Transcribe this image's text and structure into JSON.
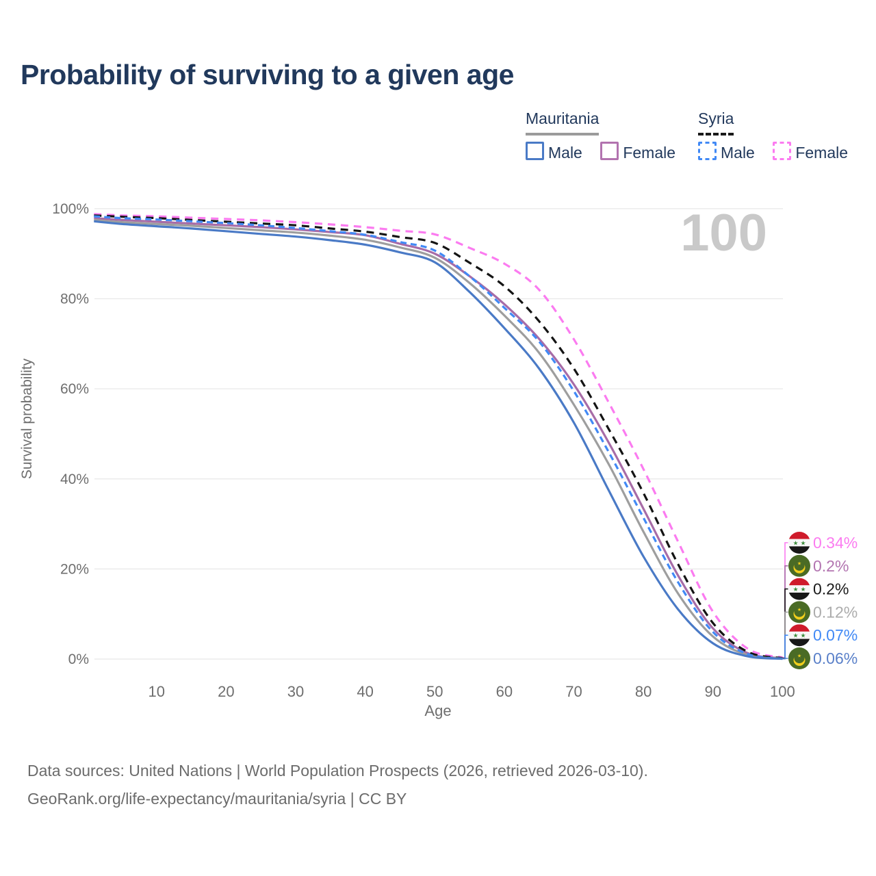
{
  "title": "Probability of surviving to a given age",
  "watermark": "100",
  "legend": {
    "groups": [
      {
        "name": "Mauritania",
        "underline_color": "#9b9b9b",
        "underline_style": "solid",
        "items": [
          {
            "label": "Male",
            "color": "#4a7ac6",
            "dashed": false
          },
          {
            "label": "Female",
            "color": "#b273af",
            "dashed": false
          }
        ]
      },
      {
        "name": "Syria",
        "underline_color": "#1a1a1a",
        "underline_style": "dashed",
        "items": [
          {
            "label": "Male",
            "color": "#4189f5",
            "dashed": true
          },
          {
            "label": "Female",
            "color": "#fb7bf0",
            "dashed": true
          }
        ]
      }
    ]
  },
  "chart_data": {
    "type": "line",
    "title": "Probability of surviving to a given age",
    "xlabel": "Age",
    "ylabel": "Survival probability",
    "xlim": [
      1,
      100
    ],
    "ylim": [
      0,
      100
    ],
    "grid": "horizontal",
    "x_ticks": [
      10,
      20,
      30,
      40,
      50,
      60,
      70,
      80,
      90,
      100
    ],
    "y_ticks": [
      0,
      20,
      40,
      60,
      80,
      100
    ],
    "y_tick_labels": [
      "0%",
      "20%",
      "40%",
      "60%",
      "80%",
      "100%"
    ],
    "ages": [
      1,
      5,
      10,
      15,
      20,
      25,
      30,
      35,
      40,
      45,
      50,
      55,
      60,
      65,
      70,
      75,
      80,
      85,
      90,
      95,
      100
    ],
    "series": [
      {
        "id": "syria-female",
        "name": "Syria Female",
        "country": "syria",
        "sex": "female",
        "color": "#fb7bf0",
        "dash": "11 8",
        "end_label": "0.34%",
        "end_label_color": "#fb7bf0",
        "flag": "syria",
        "values": [
          98.8,
          98.5,
          98.3,
          98.0,
          97.7,
          97.4,
          97.0,
          96.5,
          95.9,
          95.1,
          94.3,
          91.3,
          87.8,
          82.0,
          71.0,
          57.0,
          42.2,
          26.0,
          10.5,
          2.3,
          0.34
        ]
      },
      {
        "id": "mauritania-female",
        "name": "Mauritania Female",
        "country": "mauritania",
        "sex": "female",
        "color": "#a76ca7",
        "dash": "",
        "end_label": "0.2%",
        "end_label_color": "#b274b0",
        "flag": "mauritania",
        "values": [
          97.9,
          97.5,
          97.1,
          96.7,
          96.3,
          95.9,
          95.4,
          94.8,
          94.1,
          92.2,
          90.0,
          85.0,
          78.8,
          71.1,
          61.0,
          48.1,
          33.4,
          18.5,
          6.8,
          1.3,
          0.2
        ]
      },
      {
        "id": "syria-total",
        "name": "Syria",
        "country": "syria",
        "sex": "total",
        "color": "#141414",
        "dash": "11 8",
        "end_label": "0.2%",
        "end_label_color": "#1a1a1a",
        "flag": "syria",
        "values": [
          98.5,
          98.2,
          97.9,
          97.5,
          97.1,
          96.7,
          96.3,
          95.6,
          94.9,
          93.7,
          92.4,
          88.0,
          82.8,
          75.0,
          64.5,
          51.1,
          36.9,
          21.0,
          8.0,
          1.6,
          0.2
        ]
      },
      {
        "id": "mauritania-total",
        "name": "Mauritania",
        "country": "mauritania",
        "sex": "total",
        "color": "#9e9e9e",
        "dash": "",
        "end_label": "0.12%",
        "end_label_color": "#acacac",
        "flag": "mauritania",
        "values": [
          97.5,
          97.0,
          96.6,
          96.2,
          95.7,
          95.2,
          94.7,
          94.0,
          93.1,
          91.4,
          89.1,
          83.5,
          76.3,
          68.0,
          56.5,
          43.3,
          28.3,
          14.5,
          5.0,
          0.9,
          0.12
        ]
      },
      {
        "id": "syria-male",
        "name": "Syria Male",
        "country": "syria",
        "sex": "male",
        "color": "#4189f5",
        "dash": "9 6",
        "end_label": "0.07%",
        "end_label_color": "#4189f5",
        "flag": "syria",
        "values": [
          98.3,
          97.9,
          97.6,
          97.2,
          96.8,
          96.3,
          95.7,
          95.0,
          94.2,
          92.6,
          90.7,
          85.0,
          78.0,
          70.5,
          59.5,
          46.0,
          31.4,
          17.0,
          6.0,
          1.1,
          0.07
        ]
      },
      {
        "id": "mauritania-male",
        "name": "Mauritania Male",
        "country": "mauritania",
        "sex": "male",
        "color": "#4a7ac6",
        "dash": "",
        "end_label": "0.06%",
        "end_label_color": "#5a80c9",
        "flag": "mauritania",
        "values": [
          97.2,
          96.6,
          96.1,
          95.6,
          95.0,
          94.4,
          93.8,
          93.0,
          92.0,
          90.3,
          88.1,
          81.5,
          73.5,
          64.5,
          52.5,
          37.5,
          22.8,
          11.0,
          3.5,
          0.6,
          0.06
        ]
      }
    ]
  },
  "colors": {
    "title": "#21395c",
    "axis_text": "#6e6e6e",
    "gridline": "#e8e8e8",
    "watermark": "#c9c9c9",
    "flag_syria_red": "#cf1b2b",
    "flag_syria_black": "#171717",
    "flag_syria_star_green": "#3c8c3c",
    "flag_mauritania_green": "#4a6b25",
    "flag_mauritania_gold": "#f2cf1c"
  },
  "source": {
    "line1": "Data sources: United Nations | World Population Prospects (2026, retrieved 2026-03-10).",
    "line2": "GeoRank.org/life-expectancy/mauritania/syria | CC BY"
  }
}
